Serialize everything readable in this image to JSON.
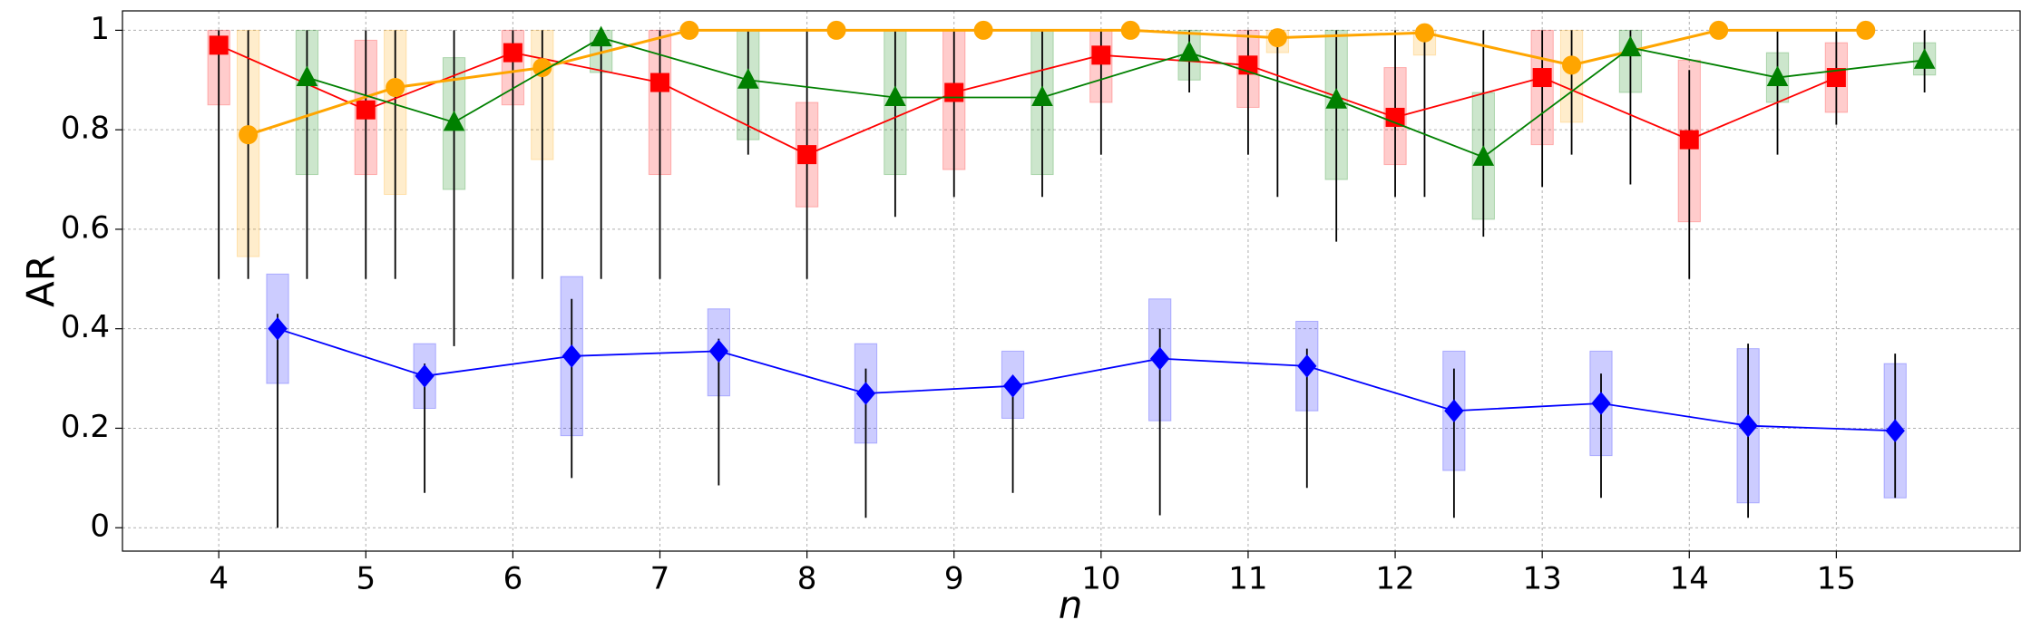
{
  "chart_data": {
    "type": "box-line",
    "x_label": "n",
    "y_label": "AR",
    "xlim": [
      3.345,
      16.25
    ],
    "ylim": [
      -0.047,
      1.039
    ],
    "xticks": [
      4,
      5,
      6,
      7,
      8,
      9,
      10,
      11,
      12,
      13,
      14,
      15
    ],
    "yticks": [
      0,
      0.2,
      0.4,
      0.6,
      0.8,
      1
    ],
    "grid": true,
    "series": [
      {
        "color": "#ff0000",
        "marker": "square",
        "x": [
          4,
          5,
          6,
          7,
          8,
          9,
          10,
          11,
          12,
          13,
          14,
          15
        ],
        "values": [
          0.97,
          0.84,
          0.955,
          0.895,
          0.75,
          0.875,
          0.95,
          0.93,
          0.825,
          0.905,
          0.78,
          0.905
        ],
        "box_low": [
          0.85,
          0.71,
          0.85,
          0.71,
          0.645,
          0.72,
          0.855,
          0.845,
          0.73,
          0.77,
          0.615,
          0.835
        ],
        "box_high": [
          1,
          0.98,
          1,
          1,
          0.855,
          1,
          1,
          1,
          0.925,
          1,
          0.94,
          0.975
        ],
        "whisker_low": [
          0.5,
          0.5,
          0.5,
          0.5,
          0.5,
          0.665,
          0.75,
          0.75,
          0.665,
          0.685,
          0.5,
          0.81
        ],
        "whisker_high": [
          1,
          1,
          1,
          1,
          1,
          1,
          1,
          1,
          1,
          1,
          0.92,
          1
        ]
      },
      {
        "color": "#ffa500",
        "marker": "circle",
        "x": [
          4.2,
          5.2,
          6.2,
          7.2,
          8.2,
          9.2,
          10.2,
          11.2,
          12.2,
          13.2,
          14.2,
          15.2
        ],
        "values": [
          0.79,
          0.885,
          0.925,
          1,
          1,
          1,
          1,
          0.985,
          0.995,
          0.93,
          1,
          1
        ],
        "box_low": [
          0.545,
          0.67,
          0.74,
          1,
          1,
          1,
          1,
          0.955,
          0.95,
          0.815,
          1,
          1
        ],
        "box_high": [
          1,
          1,
          1,
          1,
          1,
          1,
          1,
          1,
          1,
          1,
          1,
          1
        ],
        "whisker_low": [
          0.5,
          0.5,
          0.5,
          1,
          1,
          1,
          1,
          0.665,
          0.665,
          0.75,
          1,
          1
        ],
        "whisker_high": [
          1,
          1,
          1,
          1,
          1,
          1,
          1,
          1,
          1,
          1,
          1,
          1
        ]
      },
      {
        "color": "#0000ff",
        "marker": "diamond",
        "x": [
          4.4,
          5.4,
          6.4,
          7.4,
          8.4,
          9.4,
          10.4,
          11.4,
          12.4,
          13.4,
          14.4,
          15.4
        ],
        "values": [
          0.4,
          0.305,
          0.345,
          0.355,
          0.27,
          0.285,
          0.34,
          0.325,
          0.235,
          0.25,
          0.205,
          0.195
        ],
        "box_low": [
          0.29,
          0.24,
          0.185,
          0.265,
          0.17,
          0.22,
          0.215,
          0.235,
          0.115,
          0.145,
          0.05,
          0.06
        ],
        "box_high": [
          0.51,
          0.37,
          0.505,
          0.44,
          0.37,
          0.355,
          0.46,
          0.415,
          0.355,
          0.355,
          0.36,
          0.33
        ],
        "whisker_low": [
          0,
          0.07,
          0.1,
          0.085,
          0.02,
          0.07,
          0.025,
          0.08,
          0.02,
          0.06,
          0.02,
          0.06
        ],
        "whisker_high": [
          0.43,
          0.33,
          0.46,
          0.38,
          0.32,
          0.3,
          0.4,
          0.36,
          0.32,
          0.31,
          0.37,
          0.35
        ]
      },
      {
        "color": "#008000",
        "marker": "triangle",
        "x": [
          4.6,
          5.6,
          6.6,
          7.6,
          8.6,
          9.6,
          10.6,
          11.6,
          12.6,
          13.6,
          14.6,
          15.6
        ],
        "values": [
          0.905,
          0.815,
          0.985,
          0.9,
          0.865,
          0.865,
          0.955,
          0.86,
          0.745,
          0.965,
          0.905,
          0.94
        ],
        "box_low": [
          0.71,
          0.68,
          0.915,
          0.78,
          0.71,
          0.71,
          0.9,
          0.7,
          0.62,
          0.875,
          0.855,
          0.91
        ],
        "box_high": [
          1,
          0.945,
          1,
          1,
          1,
          1,
          1,
          1,
          0.875,
          1,
          0.955,
          0.975
        ],
        "whisker_low": [
          0.5,
          0.365,
          0.5,
          0.75,
          0.625,
          0.665,
          0.875,
          0.575,
          0.585,
          0.69,
          0.75,
          0.875
        ],
        "whisker_high": [
          1,
          1,
          1,
          1,
          1,
          1,
          1,
          1,
          1,
          1,
          1,
          1
        ]
      }
    ]
  }
}
